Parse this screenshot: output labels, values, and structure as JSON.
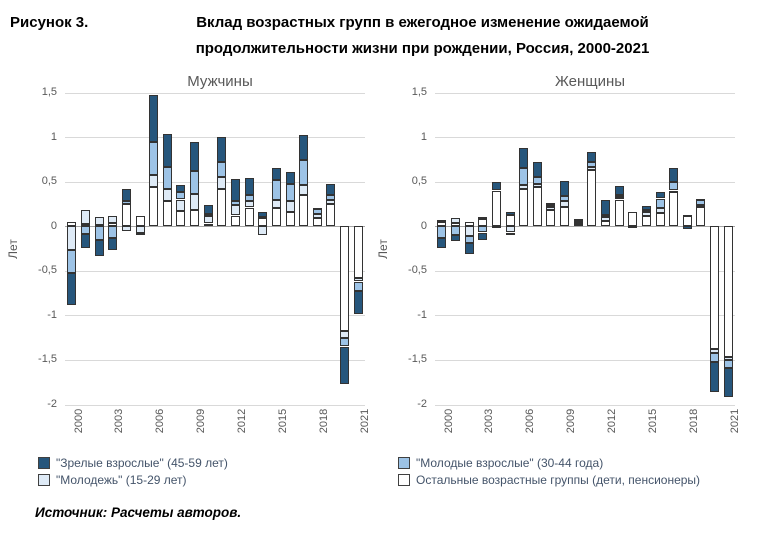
{
  "figure": {
    "label": "Рисунок 3.",
    "title": "Вклад возрастных групп в ежегодное изменение ожидаемой продолжительности жизни при рождении, Россия, 2000-2021",
    "source": "Источник: Расчеты авторов."
  },
  "colors": {
    "mature_adults": "#26567C",
    "young_adults": "#9DC3E6",
    "youth": "#DEEAF6",
    "others": "#FFFFFF",
    "gridline": "#d9d9d9",
    "axis_text": "#595959",
    "legend_text": "#44546a"
  },
  "legend": {
    "columns": [
      [
        {
          "label": "\"Зрелые взрослые\" (45-59 лет)",
          "color": "#26567C"
        },
        {
          "label": "\"Молодежь\" (15-29 лет)",
          "color": "#DEEAF6"
        }
      ],
      [
        {
          "label": "\"Молодые взрослые\" (30-44 года)",
          "color": "#9DC3E6"
        },
        {
          "label": "Остальные возрастные группы (дети, пенсионеры)",
          "color": "#FFFFFF"
        }
      ]
    ]
  },
  "chart_data": [
    {
      "type": "bar",
      "stacked": true,
      "title": "Мужчины",
      "ylabel": "Лет",
      "ylim": [
        -2,
        1.5
      ],
      "ytick_values": [
        1.5,
        1,
        0.5,
        0,
        -0.5,
        -1,
        -1.5,
        -2
      ],
      "ytick_labels": [
        "1,5",
        "1",
        "0,5",
        "0",
        "-0,5",
        "-1",
        "-1,5",
        "-2"
      ],
      "categories": [
        2000,
        2001,
        2002,
        2003,
        2004,
        2005,
        2006,
        2007,
        2008,
        2009,
        2010,
        2011,
        2012,
        2013,
        2014,
        2015,
        2016,
        2017,
        2018,
        2019,
        2020,
        2021
      ],
      "xticks_shown": [
        2000,
        2003,
        2006,
        2009,
        2012,
        2015,
        2018,
        2021
      ],
      "series": [
        {
          "name": "Остальные возрастные группы (дети, пенсионеры)",
          "color": "#FFFFFF",
          "values": [
            0.05,
            0.02,
            0.01,
            0.04,
            0.25,
            0.11,
            0.44,
            0.28,
            0.17,
            0.18,
            0.03,
            0.42,
            0.12,
            0.21,
            0.09,
            0.2,
            0.16,
            0.35,
            0.09,
            0.25,
            -1.18,
            -0.58
          ]
        },
        {
          "name": "\"Молодежь\" (15-29 лет)",
          "color": "#DEEAF6",
          "values": [
            -0.27,
            0.16,
            0.09,
            0.08,
            -0.05,
            -0.08,
            0.13,
            0.14,
            0.13,
            0.18,
            0.08,
            0.13,
            0.12,
            0.07,
            -0.1,
            0.09,
            0.12,
            0.11,
            0.05,
            0.04,
            -0.07,
            -0.04
          ]
        },
        {
          "name": "\"Молодые взрослые\" (30-44 года)",
          "color": "#9DC3E6",
          "values": [
            -0.25,
            -0.09,
            -0.15,
            -0.13,
            0.03,
            -0.02,
            0.38,
            0.25,
            0.08,
            0.26,
            0.03,
            0.17,
            0.04,
            0.07,
            0.02,
            0.23,
            0.19,
            0.28,
            0.06,
            0.06,
            -0.1,
            -0.11
          ]
        },
        {
          "name": "\"Зрелые взрослые\" (45-59 лет)",
          "color": "#26567C",
          "values": [
            -0.36,
            -0.16,
            -0.19,
            -0.14,
            0.14,
            0.0,
            0.52,
            0.37,
            0.08,
            0.32,
            0.1,
            0.28,
            0.25,
            0.19,
            0.05,
            0.13,
            0.14,
            0.28,
            0.01,
            0.12,
            -0.42,
            -0.26
          ]
        }
      ]
    },
    {
      "type": "bar",
      "stacked": true,
      "title": "Женщины",
      "ylabel": "Лет",
      "ylim": [
        -2,
        1.5
      ],
      "ytick_values": [
        1.5,
        1,
        0.5,
        0,
        -0.5,
        -1,
        -1.5,
        -2
      ],
      "ytick_labels": [
        "1,5",
        "1",
        "0,5",
        "0",
        "-0,5",
        "-1",
        "-1,5",
        "-2"
      ],
      "categories": [
        2000,
        2001,
        2002,
        2003,
        2004,
        2005,
        2006,
        2007,
        2008,
        2009,
        2010,
        2011,
        2012,
        2013,
        2014,
        2015,
        2016,
        2017,
        2018,
        2019,
        2020,
        2021
      ],
      "xticks_shown": [
        2000,
        2003,
        2006,
        2009,
        2012,
        2015,
        2018,
        2021
      ],
      "series": [
        {
          "name": "Остальные возрастные группы (дети, пенсионеры)",
          "color": "#FFFFFF",
          "values": [
            0.05,
            0.04,
            0.05,
            0.08,
            0.4,
            0.13,
            0.42,
            0.44,
            0.18,
            0.22,
            0.03,
            0.63,
            0.06,
            0.3,
            0.16,
            0.12,
            0.15,
            0.38,
            0.12,
            0.22,
            -1.38,
            -1.47
          ]
        },
        {
          "name": "\"Молодежь\" (15-29 лет)",
          "color": "#DEEAF6",
          "values": [
            0.02,
            0.05,
            -0.11,
            0.02,
            -0.02,
            -0.07,
            0.04,
            0.03,
            0.04,
            0.06,
            0.02,
            0.04,
            0.04,
            0.03,
            0.0,
            0.04,
            0.05,
            0.02,
            0.01,
            0.02,
            -0.04,
            -0.03
          ]
        },
        {
          "name": "\"Молодые взрослые\" (30-44 года)",
          "color": "#9DC3E6",
          "values": [
            -0.13,
            -0.1,
            -0.08,
            -0.07,
            0.0,
            -0.02,
            0.19,
            0.08,
            0.02,
            0.06,
            0.01,
            0.05,
            0.03,
            0.02,
            0.0,
            0.02,
            0.11,
            0.1,
            0.0,
            0.06,
            -0.1,
            -0.09
          ]
        },
        {
          "name": "\"Зрелые взрослые\" (45-59 лет)",
          "color": "#26567C",
          "values": [
            -0.12,
            -0.07,
            -0.12,
            -0.08,
            0.1,
            0.03,
            0.23,
            0.17,
            0.02,
            0.17,
            0.02,
            0.11,
            0.17,
            0.1,
            -0.02,
            0.05,
            0.07,
            0.15,
            -0.03,
            0.01,
            -0.34,
            -0.33
          ]
        }
      ]
    }
  ]
}
